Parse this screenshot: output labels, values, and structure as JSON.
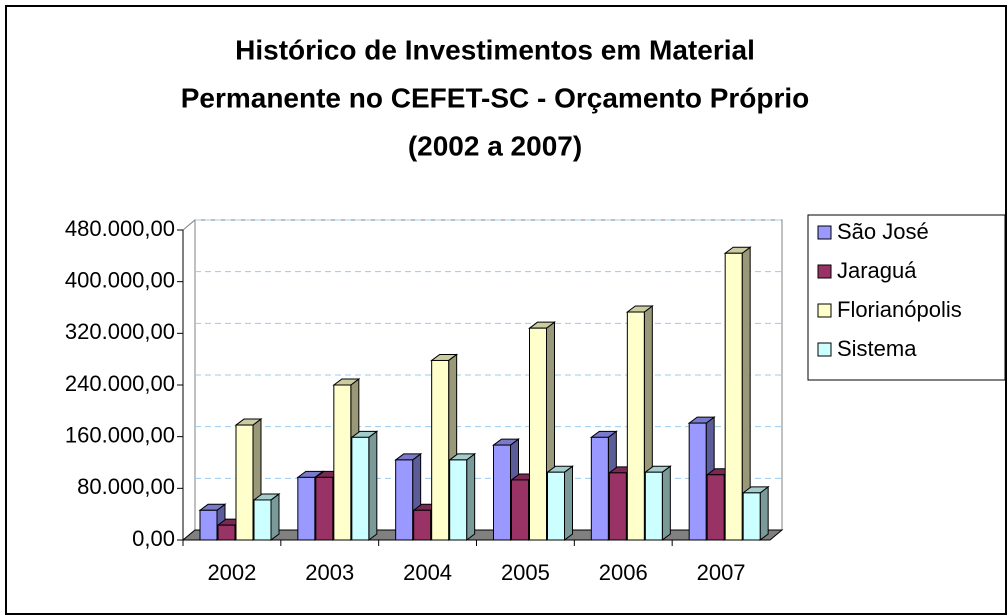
{
  "chart_data": {
    "type": "bar3d",
    "title": [
      "Histórico de Investimentos em Material",
      "Permanente no CEFET-SC - Orçamento Próprio",
      "(2002 a 2007)"
    ],
    "categories": [
      "2002",
      "2003",
      "2004",
      "2005",
      "2006",
      "2007"
    ],
    "series": [
      {
        "name": "São José",
        "color": "#9999ff",
        "values": [
          46000,
          97000,
          124000,
          147000,
          159000,
          181000
        ]
      },
      {
        "name": "Jaraguá",
        "color": "#993366",
        "values": [
          23000,
          97000,
          46000,
          93000,
          104000,
          101000
        ]
      },
      {
        "name": "Florianópolis",
        "color": "#ffffcc",
        "values": [
          178000,
          240000,
          278000,
          328000,
          353000,
          444000
        ]
      },
      {
        "name": "Sistema",
        "color": "#ccffff",
        "values": [
          62000,
          159000,
          124000,
          105000,
          105000,
          73000
        ]
      }
    ],
    "ylim": [
      0,
      480000
    ],
    "yticks": [
      {
        "value": 0,
        "label": "0,00"
      },
      {
        "value": 80000,
        "label": "80.000,00"
      },
      {
        "value": 160000,
        "label": "160.000,00"
      },
      {
        "value": 240000,
        "label": "240.000,00"
      },
      {
        "value": 320000,
        "label": "320.000,00"
      },
      {
        "value": 400000,
        "label": "400.000,00"
      },
      {
        "value": 480000,
        "label": "480.000,00"
      }
    ],
    "grid": true,
    "legend": "right"
  }
}
